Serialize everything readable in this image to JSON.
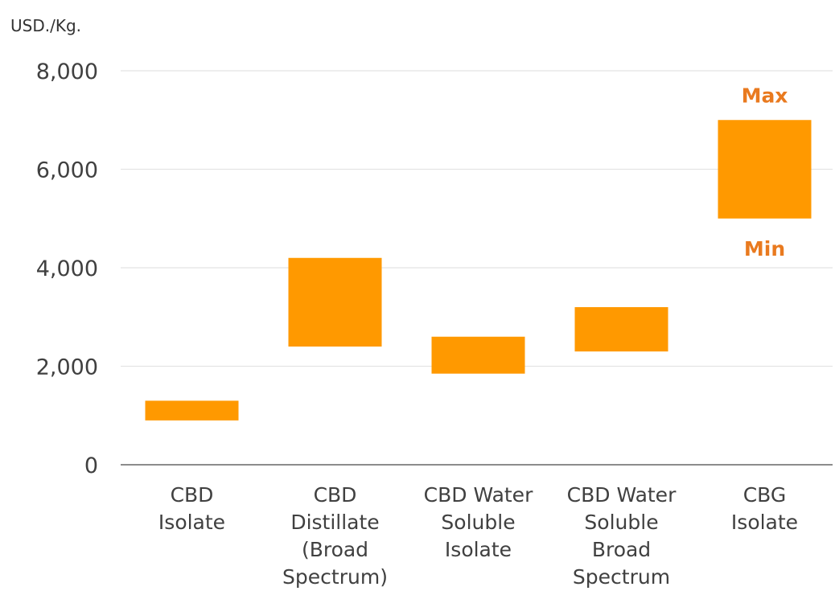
{
  "chart_data": {
    "type": "bar",
    "subtype": "floating-range",
    "unit_label": "USD./Kg.",
    "categories": [
      [
        "CBD",
        "Isolate"
      ],
      [
        "CBD",
        "Distillate",
        "(Broad",
        "Spectrum)"
      ],
      [
        "CBD Water",
        "Soluble",
        "Isolate"
      ],
      [
        "CBD Water",
        "Soluble",
        "Broad",
        "Spectrum"
      ],
      [
        "CBG",
        "Isolate"
      ]
    ],
    "min": [
      900,
      2400,
      1850,
      2300,
      5000
    ],
    "max": [
      1300,
      4200,
      2600,
      3200,
      7000
    ],
    "ylim": [
      0,
      8000
    ],
    "yticks": [
      0,
      2000,
      4000,
      6000,
      8000
    ],
    "ytick_labels": [
      "0",
      "2,000",
      "4,000",
      "6,000",
      "8,000"
    ],
    "grid": true,
    "legend": "none",
    "annotations": [
      {
        "text": "Max",
        "category_index": 4,
        "position": "above"
      },
      {
        "text": "Min",
        "category_index": 4,
        "position": "below"
      }
    ],
    "colors": {
      "bar": "#ff9900",
      "annotation": "#e97a1f"
    }
  }
}
